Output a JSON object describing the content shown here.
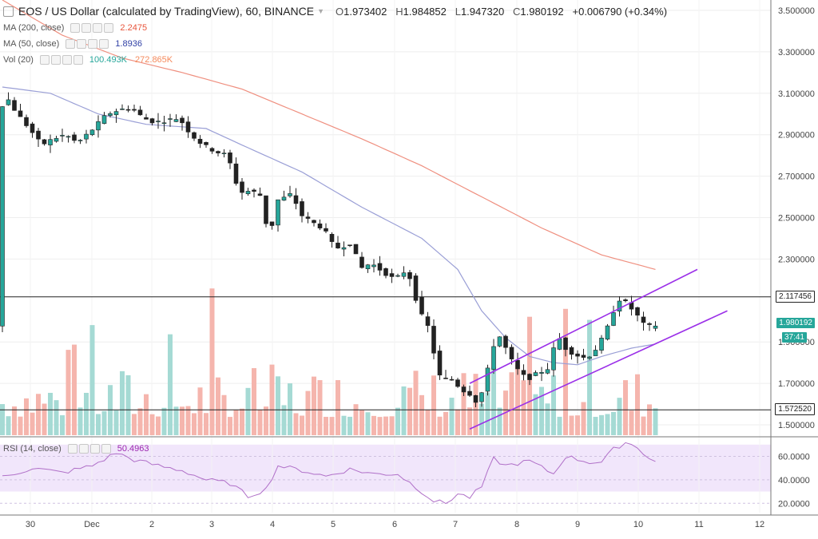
{
  "header": {
    "symbol": "EOS / US Dollar (calculated by TradingView), 60, BINANCE",
    "open_label": "O",
    "open": "1.973402",
    "high_label": "H",
    "high": "1.984852",
    "low_label": "L",
    "low": "1.947320",
    "close_label": "C",
    "close": "1.980192",
    "change": "+0.006790 (+0.34%)"
  },
  "indicators": [
    {
      "label": "MA (200, close)",
      "value": "2.2475",
      "color": "#e8553c"
    },
    {
      "label": "MA (50, close)",
      "value": "1.8936",
      "color": "#2f3fa5"
    },
    {
      "label": "Vol (20)",
      "value": "100.493K",
      "value2": "272.865K",
      "color": "#26a69a",
      "color2": "#f58a5c"
    }
  ],
  "rsi": {
    "label": "RSI (14, close)",
    "value": "50.4963",
    "color": "#9c27b0"
  },
  "price_tags": {
    "resistance": "2.117456",
    "current": "1.980192",
    "countdown": "37:41",
    "support": "1.572520"
  },
  "chart_data": {
    "type": "candlestick",
    "y_axis_labels": [
      "3.500000",
      "3.300000",
      "3.100000",
      "2.900000",
      "2.700000",
      "2.500000",
      "2.300000",
      "1.900000",
      "1.700000",
      "1.500000"
    ],
    "ylim": [
      1.45,
      3.55
    ],
    "x_axis_labels": [
      "30",
      "Dec",
      "2",
      "3",
      "4",
      "5",
      "6",
      "7",
      "8",
      "9",
      "10",
      "11",
      "12"
    ],
    "rsi_axis_labels": [
      "60.0000",
      "40.0000",
      "20.0000"
    ],
    "rsi_ylim": [
      12,
      76
    ],
    "horizontal_lines": [
      2.117456,
      1.57252
    ],
    "price_anchors": [
      [
        0,
        3.0
      ],
      [
        1,
        3.09
      ],
      [
        3,
        3.0
      ],
      [
        5,
        2.93
      ],
      [
        7,
        2.85
      ],
      [
        9,
        2.88
      ],
      [
        11,
        2.9
      ],
      [
        13,
        2.86
      ],
      [
        15,
        2.91
      ],
      [
        18,
        3.0
      ],
      [
        20,
        3.02
      ],
      [
        22,
        3.03
      ],
      [
        24,
        2.98
      ],
      [
        26,
        2.96
      ],
      [
        28,
        2.97
      ],
      [
        30,
        2.98
      ],
      [
        32,
        2.9
      ],
      [
        34,
        2.85
      ],
      [
        36,
        2.82
      ],
      [
        38,
        2.8
      ],
      [
        39,
        2.72
      ],
      [
        40,
        2.62
      ],
      [
        42,
        2.63
      ],
      [
        44,
        2.6
      ],
      [
        45,
        2.35
      ],
      [
        46,
        2.58
      ],
      [
        48,
        2.6
      ],
      [
        49,
        2.62
      ],
      [
        50,
        2.52
      ],
      [
        52,
        2.48
      ],
      [
        54,
        2.45
      ],
      [
        56,
        2.35
      ],
      [
        58,
        2.37
      ],
      [
        59,
        2.38
      ],
      [
        60,
        2.25
      ],
      [
        62,
        2.28
      ],
      [
        64,
        2.24
      ],
      [
        66,
        2.2
      ],
      [
        68,
        2.25
      ],
      [
        69,
        2.17
      ],
      [
        70,
        2.05
      ],
      [
        72,
        1.95
      ],
      [
        73,
        1.75
      ],
      [
        74,
        1.72
      ],
      [
        76,
        1.72
      ],
      [
        77,
        1.66
      ],
      [
        78,
        1.67
      ],
      [
        79,
        1.63
      ],
      [
        80,
        1.6
      ],
      [
        82,
        1.82
      ],
      [
        83,
        1.95
      ],
      [
        84,
        1.9
      ],
      [
        86,
        1.78
      ],
      [
        88,
        1.72
      ],
      [
        90,
        1.75
      ],
      [
        92,
        1.78
      ],
      [
        93,
        1.95
      ],
      [
        94,
        1.88
      ],
      [
        96,
        1.84
      ],
      [
        98,
        1.82
      ],
      [
        100,
        1.88
      ],
      [
        102,
        2.0
      ],
      [
        103,
        2.1
      ],
      [
        104,
        2.11
      ],
      [
        105,
        2.07
      ],
      [
        106,
        2.05
      ],
      [
        107,
        2.0
      ],
      [
        108,
        1.97
      ],
      [
        109,
        1.98
      ]
    ],
    "ma200": [
      [
        0,
        3.55
      ],
      [
        10,
        3.38
      ],
      [
        20,
        3.27
      ],
      [
        30,
        3.2
      ],
      [
        40,
        3.12
      ],
      [
        50,
        3.0
      ],
      [
        60,
        2.88
      ],
      [
        70,
        2.75
      ],
      [
        80,
        2.6
      ],
      [
        90,
        2.45
      ],
      [
        100,
        2.32
      ],
      [
        109,
        2.25
      ]
    ],
    "ma50": [
      [
        0,
        3.13
      ],
      [
        8,
        3.1
      ],
      [
        16,
        3.0
      ],
      [
        24,
        2.95
      ],
      [
        34,
        2.93
      ],
      [
        40,
        2.85
      ],
      [
        50,
        2.72
      ],
      [
        60,
        2.55
      ],
      [
        70,
        2.4
      ],
      [
        76,
        2.25
      ],
      [
        80,
        2.05
      ],
      [
        84,
        1.92
      ],
      [
        88,
        1.83
      ],
      [
        92,
        1.8
      ],
      [
        96,
        1.79
      ],
      [
        100,
        1.83
      ],
      [
        105,
        1.87
      ],
      [
        109,
        1.89
      ]
    ],
    "rsi_anchors": [
      [
        0,
        42
      ],
      [
        5,
        50
      ],
      [
        10,
        46
      ],
      [
        15,
        52
      ],
      [
        19,
        63
      ],
      [
        22,
        57
      ],
      [
        26,
        52
      ],
      [
        30,
        48
      ],
      [
        34,
        40
      ],
      [
        38,
        37
      ],
      [
        41,
        26
      ],
      [
        44,
        32
      ],
      [
        46,
        52
      ],
      [
        50,
        48
      ],
      [
        54,
        43
      ],
      [
        58,
        49
      ],
      [
        62,
        45
      ],
      [
        66,
        45
      ],
      [
        70,
        30
      ],
      [
        72,
        22
      ],
      [
        74,
        20
      ],
      [
        76,
        28
      ],
      [
        78,
        25
      ],
      [
        80,
        34
      ],
      [
        82,
        58
      ],
      [
        84,
        52
      ],
      [
        88,
        56
      ],
      [
        92,
        45
      ],
      [
        94,
        60
      ],
      [
        98,
        55
      ],
      [
        100,
        55
      ],
      [
        102,
        66
      ],
      [
        104,
        72
      ],
      [
        106,
        68
      ],
      [
        108,
        58
      ],
      [
        109,
        55
      ]
    ],
    "volume": {
      "max_ratio": 0.35
    },
    "channel_upper": [
      [
        1.7,
        78
      ],
      [
        2.25,
        116
      ]
    ],
    "channel_lower": [
      [
        1.48,
        78
      ],
      [
        2.05,
        121
      ]
    ]
  }
}
